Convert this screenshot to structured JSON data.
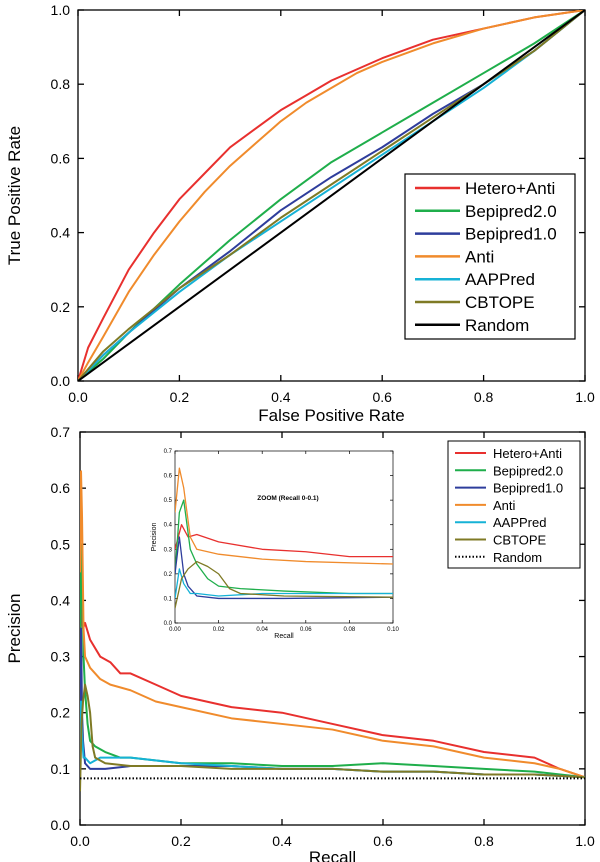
{
  "chart_data": [
    {
      "type": "line",
      "xlabel": "False Positive Rate",
      "ylabel": "True Positive Rate",
      "xlim": [
        0,
        1
      ],
      "ylim": [
        0,
        1
      ],
      "xticks": [
        "0.0",
        "0.2",
        "0.4",
        "0.6",
        "0.8",
        "1.0"
      ],
      "yticks": [
        "0.0",
        "0.2",
        "0.4",
        "0.6",
        "0.8",
        "1.0"
      ],
      "legend_position": "lower-right",
      "series": [
        {
          "name": "Hetero+Anti",
          "color": "#e8302e",
          "dash": "none",
          "points": [
            [
              0,
              0
            ],
            [
              0.02,
              0.09
            ],
            [
              0.05,
              0.17
            ],
            [
              0.1,
              0.3
            ],
            [
              0.15,
              0.4
            ],
            [
              0.2,
              0.49
            ],
            [
              0.25,
              0.56
            ],
            [
              0.3,
              0.63
            ],
            [
              0.35,
              0.68
            ],
            [
              0.4,
              0.73
            ],
            [
              0.45,
              0.77
            ],
            [
              0.5,
              0.81
            ],
            [
              0.55,
              0.84
            ],
            [
              0.6,
              0.87
            ],
            [
              0.7,
              0.92
            ],
            [
              0.8,
              0.95
            ],
            [
              0.9,
              0.98
            ],
            [
              1,
              1
            ]
          ]
        },
        {
          "name": "Bepipred2.0",
          "color": "#1fae4b",
          "dash": "none",
          "points": [
            [
              0,
              0
            ],
            [
              0.05,
              0.06
            ],
            [
              0.1,
              0.13
            ],
            [
              0.2,
              0.26
            ],
            [
              0.3,
              0.38
            ],
            [
              0.4,
              0.49
            ],
            [
              0.5,
              0.59
            ],
            [
              0.6,
              0.67
            ],
            [
              0.7,
              0.75
            ],
            [
              0.8,
              0.83
            ],
            [
              0.9,
              0.91
            ],
            [
              1,
              1
            ]
          ]
        },
        {
          "name": "Bepipred1.0",
          "color": "#2e3d9c",
          "dash": "none",
          "points": [
            [
              0,
              0
            ],
            [
              0.05,
              0.07
            ],
            [
              0.1,
              0.13
            ],
            [
              0.2,
              0.25
            ],
            [
              0.3,
              0.35
            ],
            [
              0.4,
              0.46
            ],
            [
              0.5,
              0.55
            ],
            [
              0.6,
              0.63
            ],
            [
              0.7,
              0.72
            ],
            [
              0.8,
              0.8
            ],
            [
              0.9,
              0.89
            ],
            [
              1,
              1
            ]
          ]
        },
        {
          "name": "Anti",
          "color": "#f08b2c",
          "dash": "none",
          "points": [
            [
              0,
              0
            ],
            [
              0.02,
              0.05
            ],
            [
              0.05,
              0.12
            ],
            [
              0.1,
              0.24
            ],
            [
              0.15,
              0.34
            ],
            [
              0.2,
              0.43
            ],
            [
              0.25,
              0.51
            ],
            [
              0.3,
              0.58
            ],
            [
              0.35,
              0.64
            ],
            [
              0.4,
              0.7
            ],
            [
              0.45,
              0.75
            ],
            [
              0.5,
              0.79
            ],
            [
              0.55,
              0.83
            ],
            [
              0.6,
              0.86
            ],
            [
              0.7,
              0.91
            ],
            [
              0.8,
              0.95
            ],
            [
              0.9,
              0.98
            ],
            [
              1,
              1
            ]
          ]
        },
        {
          "name": "AAPPred",
          "color": "#16b2d6",
          "dash": "none",
          "points": [
            [
              0,
              0
            ],
            [
              0.05,
              0.07
            ],
            [
              0.1,
              0.13
            ],
            [
              0.2,
              0.24
            ],
            [
              0.3,
              0.34
            ],
            [
              0.4,
              0.43
            ],
            [
              0.5,
              0.52
            ],
            [
              0.6,
              0.61
            ],
            [
              0.7,
              0.7
            ],
            [
              0.8,
              0.79
            ],
            [
              0.9,
              0.89
            ],
            [
              1,
              1
            ]
          ]
        },
        {
          "name": "CBTOPE",
          "color": "#7f7a25",
          "dash": "none",
          "points": [
            [
              0,
              0
            ],
            [
              0.05,
              0.08
            ],
            [
              0.1,
              0.14
            ],
            [
              0.2,
              0.25
            ],
            [
              0.3,
              0.34
            ],
            [
              0.4,
              0.44
            ],
            [
              0.5,
              0.53
            ],
            [
              0.6,
              0.62
            ],
            [
              0.7,
              0.71
            ],
            [
              0.8,
              0.8
            ],
            [
              0.9,
              0.89
            ],
            [
              1,
              1
            ]
          ]
        },
        {
          "name": "Random",
          "color": "#000000",
          "dash": "none",
          "points": [
            [
              0,
              0
            ],
            [
              1,
              1
            ]
          ]
        }
      ]
    },
    {
      "type": "line",
      "xlabel": "Recall",
      "ylabel": "Precision",
      "xlim": [
        0,
        1
      ],
      "ylim": [
        0,
        0.7
      ],
      "xticks": [
        "0.0",
        "0.2",
        "0.4",
        "0.6",
        "0.8",
        "1.0"
      ],
      "yticks": [
        "0.0",
        "0.1",
        "0.2",
        "0.3",
        "0.4",
        "0.5",
        "0.6",
        "0.7"
      ],
      "legend_position": "top-right",
      "series": [
        {
          "name": "Hetero+Anti",
          "color": "#e8302e",
          "dash": "none",
          "points": [
            [
              0,
              0.3
            ],
            [
              0.003,
              0.4
            ],
            [
              0.006,
              0.35
            ],
            [
              0.01,
              0.36
            ],
            [
              0.02,
              0.33
            ],
            [
              0.04,
              0.3
            ],
            [
              0.06,
              0.29
            ],
            [
              0.08,
              0.27
            ],
            [
              0.1,
              0.27
            ],
            [
              0.15,
              0.25
            ],
            [
              0.2,
              0.23
            ],
            [
              0.3,
              0.21
            ],
            [
              0.4,
              0.2
            ],
            [
              0.5,
              0.18
            ],
            [
              0.6,
              0.16
            ],
            [
              0.7,
              0.15
            ],
            [
              0.8,
              0.13
            ],
            [
              0.9,
              0.12
            ],
            [
              0.95,
              0.1
            ],
            [
              1,
              0.085
            ]
          ]
        },
        {
          "name": "Bepipred2.0",
          "color": "#1fae4b",
          "dash": "none",
          "points": [
            [
              0,
              0.2
            ],
            [
              0.002,
              0.45
            ],
            [
              0.004,
              0.5
            ],
            [
              0.007,
              0.3
            ],
            [
              0.01,
              0.24
            ],
            [
              0.015,
              0.18
            ],
            [
              0.02,
              0.15
            ],
            [
              0.03,
              0.14
            ],
            [
              0.05,
              0.13
            ],
            [
              0.08,
              0.12
            ],
            [
              0.1,
              0.12
            ],
            [
              0.2,
              0.11
            ],
            [
              0.3,
              0.11
            ],
            [
              0.4,
              0.105
            ],
            [
              0.5,
              0.105
            ],
            [
              0.6,
              0.11
            ],
            [
              0.7,
              0.105
            ],
            [
              0.8,
              0.1
            ],
            [
              0.9,
              0.095
            ],
            [
              1,
              0.085
            ]
          ]
        },
        {
          "name": "Bepipred1.0",
          "color": "#2e3d9c",
          "dash": "none",
          "points": [
            [
              0,
              0.2
            ],
            [
              0.002,
              0.35
            ],
            [
              0.004,
              0.2
            ],
            [
              0.006,
              0.15
            ],
            [
              0.01,
              0.11
            ],
            [
              0.02,
              0.1
            ],
            [
              0.05,
              0.1
            ],
            [
              0.1,
              0.105
            ],
            [
              0.2,
              0.105
            ],
            [
              0.3,
              0.105
            ],
            [
              0.4,
              0.1
            ],
            [
              0.5,
              0.1
            ],
            [
              0.6,
              0.095
            ],
            [
              0.7,
              0.095
            ],
            [
              0.8,
              0.09
            ],
            [
              0.9,
              0.09
            ],
            [
              1,
              0.085
            ]
          ]
        },
        {
          "name": "Anti",
          "color": "#f08b2c",
          "dash": "none",
          "points": [
            [
              0,
              0.45
            ],
            [
              0.002,
              0.63
            ],
            [
              0.004,
              0.55
            ],
            [
              0.007,
              0.35
            ],
            [
              0.01,
              0.3
            ],
            [
              0.02,
              0.28
            ],
            [
              0.04,
              0.26
            ],
            [
              0.06,
              0.25
            ],
            [
              0.1,
              0.24
            ],
            [
              0.15,
              0.22
            ],
            [
              0.2,
              0.21
            ],
            [
              0.3,
              0.19
            ],
            [
              0.4,
              0.18
            ],
            [
              0.5,
              0.17
            ],
            [
              0.6,
              0.15
            ],
            [
              0.7,
              0.14
            ],
            [
              0.8,
              0.12
            ],
            [
              0.9,
              0.11
            ],
            [
              0.95,
              0.1
            ],
            [
              1,
              0.085
            ]
          ]
        },
        {
          "name": "AAPPred",
          "color": "#16b2d6",
          "dash": "none",
          "points": [
            [
              0,
              0.1
            ],
            [
              0.002,
              0.22
            ],
            [
              0.004,
              0.16
            ],
            [
              0.007,
              0.12
            ],
            [
              0.01,
              0.12
            ],
            [
              0.02,
              0.11
            ],
            [
              0.04,
              0.12
            ],
            [
              0.06,
              0.12
            ],
            [
              0.1,
              0.12
            ],
            [
              0.2,
              0.11
            ],
            [
              0.3,
              0.105
            ],
            [
              0.4,
              0.1
            ],
            [
              0.5,
              0.1
            ],
            [
              0.6,
              0.095
            ],
            [
              0.7,
              0.095
            ],
            [
              0.8,
              0.09
            ],
            [
              0.9,
              0.09
            ],
            [
              1,
              0.085
            ]
          ]
        },
        {
          "name": "CBTOPE",
          "color": "#7f7a25",
          "dash": "none",
          "points": [
            [
              0,
              0.06
            ],
            [
              0.003,
              0.18
            ],
            [
              0.006,
              0.22
            ],
            [
              0.01,
              0.25
            ],
            [
              0.015,
              0.23
            ],
            [
              0.02,
              0.2
            ],
            [
              0.025,
              0.14
            ],
            [
              0.03,
              0.12
            ],
            [
              0.05,
              0.11
            ],
            [
              0.1,
              0.105
            ],
            [
              0.2,
              0.105
            ],
            [
              0.3,
              0.1
            ],
            [
              0.4,
              0.1
            ],
            [
              0.5,
              0.1
            ],
            [
              0.6,
              0.095
            ],
            [
              0.7,
              0.095
            ],
            [
              0.8,
              0.09
            ],
            [
              0.9,
              0.09
            ],
            [
              1,
              0.085
            ]
          ]
        },
        {
          "name": "Random",
          "color": "#000000",
          "dash": "dotted",
          "points": [
            [
              0,
              0.083
            ],
            [
              1,
              0.083
            ]
          ]
        }
      ],
      "inset": {
        "title": "ZOOM (Recall 0-0.1)",
        "xlabel": "Recall",
        "ylabel": "Precision",
        "xlim": [
          0,
          0.1
        ],
        "ylim": [
          0,
          0.7
        ],
        "xticks": [
          "0.00",
          "0.02",
          "0.04",
          "0.06",
          "0.08",
          "0.10"
        ],
        "yticks": [
          "0.0",
          "0.1",
          "0.2",
          "0.3",
          "0.4",
          "0.5",
          "0.6",
          "0.7"
        ]
      }
    }
  ]
}
